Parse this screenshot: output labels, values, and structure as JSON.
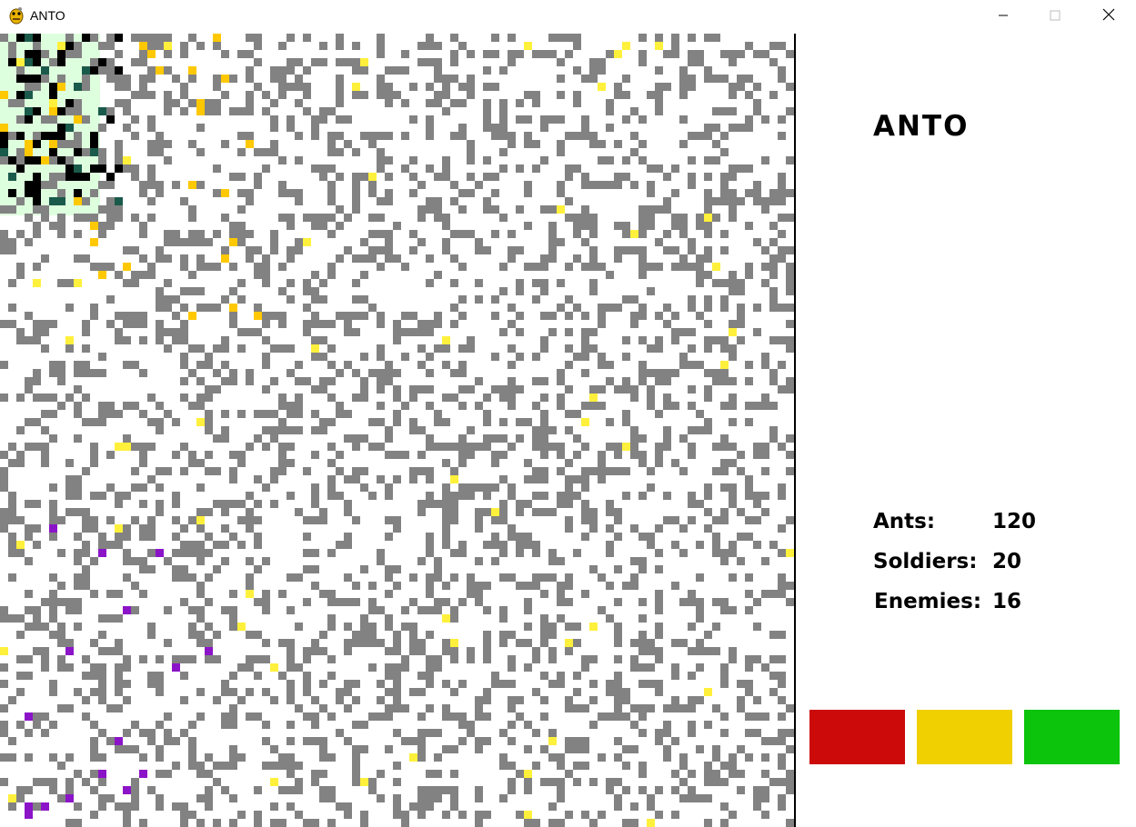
{
  "window": {
    "title": "ANTO",
    "icon": "pygame-snake-icon",
    "controls": [
      "minimize-icon",
      "maximize-icon",
      "close-icon"
    ]
  },
  "sidebar": {
    "title": "ANTO",
    "stats": [
      {
        "label": "Ants:",
        "value": "120"
      },
      {
        "label": "Soldiers:",
        "value": "20"
      },
      {
        "label": "Enemies:",
        "value": "16"
      }
    ],
    "buttons": [
      {
        "name": "red-button",
        "color": "#cc0a0a"
      },
      {
        "name": "yellow-button",
        "color": "#f0d000"
      },
      {
        "name": "green-button",
        "color": "#0bc40b"
      }
    ]
  },
  "board": {
    "grid": "97x97",
    "colors": {
      "background": "#ffffff",
      "wall": "#828282",
      "food": "#fff03c",
      "ant": "#000000",
      "carrying_ant": "#ffc800",
      "enemy": "#8c14c8",
      "pheromone": "#c8ffc8",
      "nest_ant": "#1a5a4a"
    }
  }
}
